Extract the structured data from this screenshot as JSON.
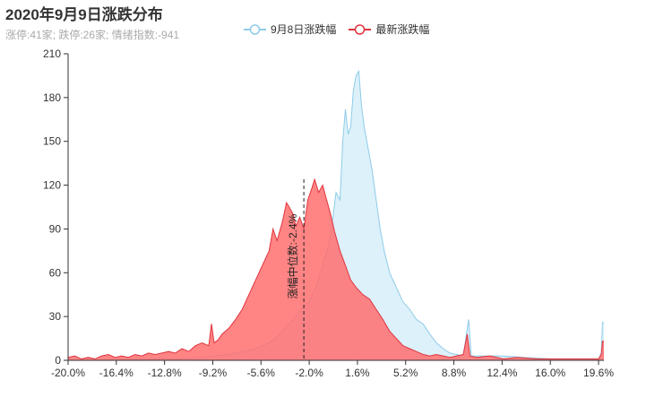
{
  "chart_data": {
    "type": "area",
    "title": "2020年9月9日涨跌分布",
    "subtitle": "涨停:41家; 跌停:26家; 情绪指数:-941",
    "xlim": [
      -20.0,
      20.0
    ],
    "ylim": [
      0,
      210
    ],
    "x_ticks": [
      "-20.0%",
      "-16.4%",
      "-12.8%",
      "-9.2%",
      "-5.6%",
      "-2.0%",
      "1.6%",
      "5.2%",
      "8.8%",
      "12.4%",
      "16.0%",
      "19.6%"
    ],
    "x_tick_values": [
      -20.0,
      -16.4,
      -12.8,
      -9.2,
      -5.6,
      -2.0,
      1.6,
      5.2,
      8.8,
      12.4,
      16.0,
      19.6
    ],
    "y_ticks": [
      0,
      30,
      60,
      90,
      120,
      150,
      180,
      210
    ],
    "legend_position": "top-center",
    "median": {
      "x": -2.4,
      "label": "涨幅中位数:-2.4%",
      "line_top_value": 124
    },
    "series": [
      {
        "name": "9月8日涨跌幅",
        "stroke": "#8fcbe8",
        "fill": "#d6eef9",
        "points": [
          [
            -20.0,
            0
          ],
          [
            -17.0,
            0
          ],
          [
            -14.0,
            1
          ],
          [
            -12.0,
            1
          ],
          [
            -10.0,
            2
          ],
          [
            -9.0,
            3
          ],
          [
            -8.0,
            4
          ],
          [
            -7.0,
            6
          ],
          [
            -6.0,
            8
          ],
          [
            -5.0,
            12
          ],
          [
            -4.5,
            15
          ],
          [
            -4.0,
            20
          ],
          [
            -3.5,
            25
          ],
          [
            -3.0,
            30
          ],
          [
            -2.5,
            36
          ],
          [
            -2.0,
            40
          ],
          [
            -1.5,
            50
          ],
          [
            -1.0,
            65
          ],
          [
            -0.5,
            80
          ],
          [
            -0.2,
            100
          ],
          [
            0.0,
            115
          ],
          [
            0.3,
            110
          ],
          [
            0.5,
            150
          ],
          [
            0.7,
            172
          ],
          [
            0.9,
            155
          ],
          [
            1.1,
            160
          ],
          [
            1.3,
            185
          ],
          [
            1.5,
            195
          ],
          [
            1.7,
            198
          ],
          [
            1.9,
            175
          ],
          [
            2.1,
            160
          ],
          [
            2.4,
            145
          ],
          [
            2.7,
            130
          ],
          [
            3.0,
            110
          ],
          [
            3.3,
            90
          ],
          [
            3.6,
            75
          ],
          [
            4.0,
            60
          ],
          [
            4.5,
            50
          ],
          [
            5.0,
            40
          ],
          [
            5.5,
            35
          ],
          [
            6.0,
            28
          ],
          [
            6.5,
            25
          ],
          [
            7.0,
            18
          ],
          [
            7.5,
            12
          ],
          [
            8.0,
            8
          ],
          [
            8.5,
            5
          ],
          [
            9.0,
            4
          ],
          [
            9.5,
            3
          ],
          [
            9.9,
            28
          ],
          [
            10.1,
            3
          ],
          [
            11.0,
            3
          ],
          [
            12.5,
            3
          ],
          [
            14.0,
            2
          ],
          [
            16.0,
            1
          ],
          [
            18.0,
            1
          ],
          [
            19.6,
            1
          ],
          [
            19.8,
            5
          ],
          [
            19.9,
            26
          ],
          [
            20.0,
            26
          ]
        ]
      },
      {
        "name": "最新涨跌幅",
        "stroke": "#e0353f",
        "fill": "#ff6e6e",
        "points": [
          [
            -20.0,
            2
          ],
          [
            -19.5,
            3
          ],
          [
            -19.0,
            1
          ],
          [
            -18.5,
            2
          ],
          [
            -18.0,
            1
          ],
          [
            -17.5,
            3
          ],
          [
            -17.0,
            4
          ],
          [
            -16.5,
            2
          ],
          [
            -16.0,
            3
          ],
          [
            -15.5,
            2
          ],
          [
            -15.0,
            4
          ],
          [
            -14.5,
            3
          ],
          [
            -14.0,
            5
          ],
          [
            -13.5,
            4
          ],
          [
            -13.0,
            5
          ],
          [
            -12.5,
            6
          ],
          [
            -12.0,
            5
          ],
          [
            -11.5,
            8
          ],
          [
            -11.0,
            6
          ],
          [
            -10.5,
            10
          ],
          [
            -10.0,
            12
          ],
          [
            -9.5,
            10
          ],
          [
            -9.3,
            25
          ],
          [
            -9.1,
            12
          ],
          [
            -8.8,
            14
          ],
          [
            -8.5,
            18
          ],
          [
            -8.0,
            22
          ],
          [
            -7.5,
            28
          ],
          [
            -7.0,
            35
          ],
          [
            -6.5,
            45
          ],
          [
            -6.0,
            55
          ],
          [
            -5.5,
            65
          ],
          [
            -5.0,
            75
          ],
          [
            -4.7,
            90
          ],
          [
            -4.4,
            82
          ],
          [
            -4.0,
            95
          ],
          [
            -3.7,
            108
          ],
          [
            -3.5,
            105
          ],
          [
            -3.2,
            100
          ],
          [
            -3.0,
            92
          ],
          [
            -2.7,
            98
          ],
          [
            -2.4,
            90
          ],
          [
            -2.1,
            110
          ],
          [
            -1.8,
            118
          ],
          [
            -1.6,
            124
          ],
          [
            -1.3,
            115
          ],
          [
            -1.0,
            120
          ],
          [
            -0.7,
            110
          ],
          [
            -0.4,
            100
          ],
          [
            -0.1,
            88
          ],
          [
            0.3,
            75
          ],
          [
            0.7,
            65
          ],
          [
            1.1,
            55
          ],
          [
            1.5,
            50
          ],
          [
            2.0,
            45
          ],
          [
            2.5,
            42
          ],
          [
            3.0,
            35
          ],
          [
            3.5,
            28
          ],
          [
            4.0,
            20
          ],
          [
            4.5,
            15
          ],
          [
            5.0,
            10
          ],
          [
            5.5,
            8
          ],
          [
            6.0,
            6
          ],
          [
            6.5,
            4
          ],
          [
            7.0,
            3
          ],
          [
            7.5,
            4
          ],
          [
            8.0,
            3
          ],
          [
            8.5,
            2
          ],
          [
            9.0,
            3
          ],
          [
            9.5,
            4
          ],
          [
            9.8,
            18
          ],
          [
            10.0,
            3
          ],
          [
            10.5,
            2
          ],
          [
            11.5,
            3
          ],
          [
            12.5,
            1
          ],
          [
            13.5,
            2
          ],
          [
            15.0,
            1
          ],
          [
            17.0,
            1
          ],
          [
            19.0,
            1
          ],
          [
            19.6,
            1
          ],
          [
            19.8,
            4
          ],
          [
            19.9,
            13
          ],
          [
            20.0,
            13
          ]
        ]
      }
    ]
  }
}
